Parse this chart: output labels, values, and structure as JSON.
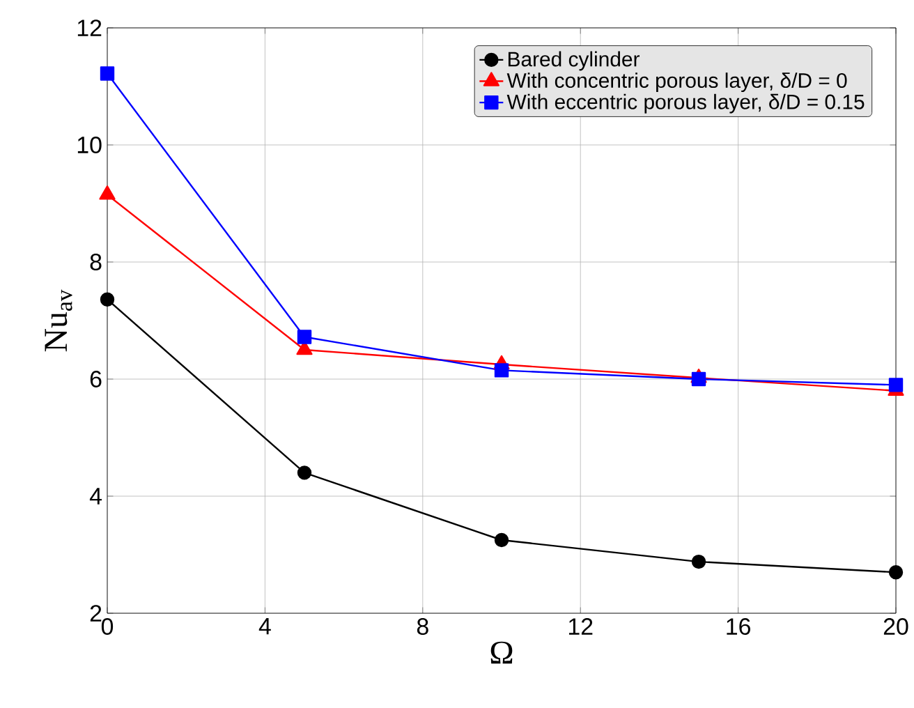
{
  "chart_data": {
    "type": "line",
    "xlabel": "Ω",
    "ylabel": "Nu$_{av}$",
    "x": [
      0,
      5,
      10,
      15,
      20
    ],
    "series": [
      {
        "name": "Bared cylinder",
        "color": "#000000",
        "marker": "circle",
        "values": [
          7.36,
          4.4,
          3.25,
          2.88,
          2.7
        ]
      },
      {
        "name": "With concentric porous layer, δ/D = 0",
        "color": "#ff0000",
        "marker": "triangle",
        "values": [
          9.15,
          6.5,
          6.25,
          6.02,
          5.8
        ]
      },
      {
        "name": "With eccentric porous layer, δ/D = 0.15",
        "color": "#0000ff",
        "marker": "square",
        "values": [
          11.22,
          6.72,
          6.15,
          6.0,
          5.9
        ]
      }
    ],
    "xlim": [
      0,
      20
    ],
    "ylim": [
      2,
      12
    ],
    "xticks": [
      0,
      4,
      8,
      12,
      16,
      20
    ],
    "yticks": [
      2,
      4,
      6,
      8,
      10,
      12
    ],
    "grid": true,
    "legend": "top right",
    "line_style": "solid"
  }
}
